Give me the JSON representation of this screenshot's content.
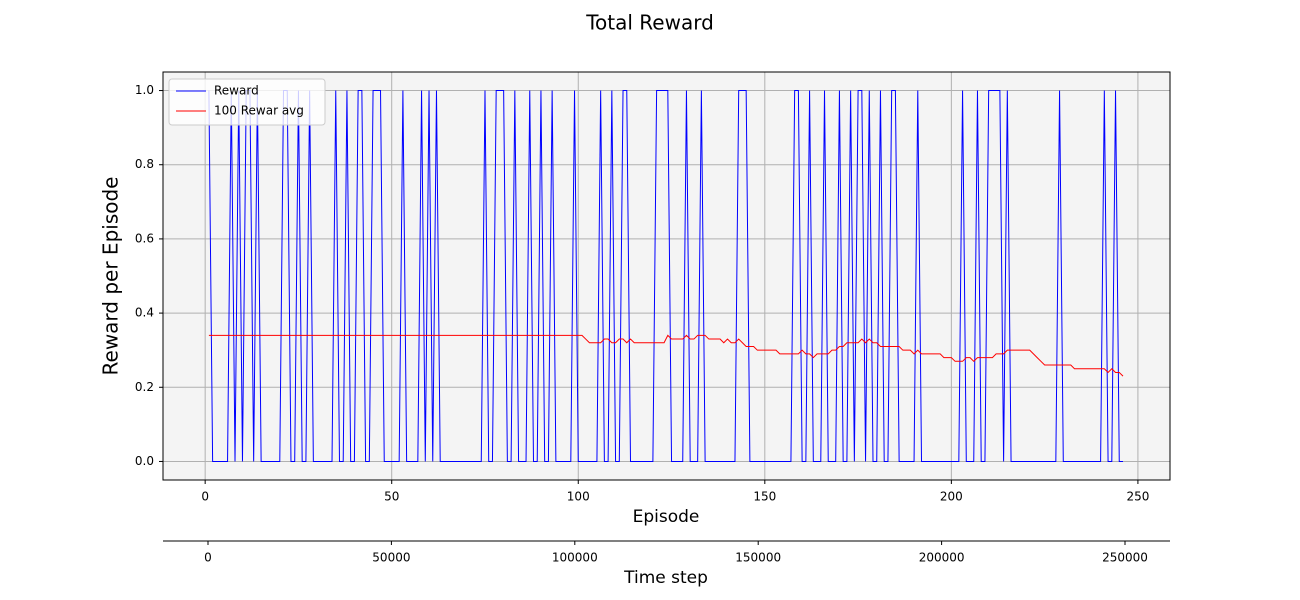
{
  "chart_data": {
    "type": "line",
    "title": "Total Reward",
    "xlabel": "Episode",
    "ylabel": "Reward per Episode",
    "x2label": "Time step",
    "legend": "upper left",
    "grid": true,
    "xlim": [
      -11.3,
      258.6
    ],
    "ylim": [
      -0.05,
      1.05
    ],
    "x2lim": [
      -12270,
      262270
    ],
    "xticks": [
      0,
      50,
      100,
      150,
      200,
      250
    ],
    "yticks": [
      {
        "value": 0,
        "label": "0.0"
      },
      0.2,
      0.4,
      0.6,
      0.8,
      {
        "value": 1,
        "label": "1.0"
      }
    ],
    "x2ticks": [
      0,
      50000,
      100000,
      150000,
      200000,
      250000
    ],
    "x": [
      1,
      2,
      3,
      4,
      5,
      6,
      7,
      8,
      9,
      10,
      11,
      12,
      13,
      14,
      15,
      16,
      17,
      18,
      19,
      20,
      21,
      22,
      23,
      24,
      25,
      26,
      27,
      28,
      29,
      30,
      31,
      32,
      33,
      34,
      35,
      36,
      37,
      38,
      39,
      40,
      41,
      42,
      43,
      44,
      45,
      46,
      47,
      48,
      49,
      50,
      51,
      52,
      53,
      54,
      55,
      56,
      57,
      58,
      59,
      60,
      61,
      62,
      63,
      64,
      65,
      66,
      67,
      68,
      69,
      70,
      71,
      72,
      73,
      74,
      75,
      76,
      77,
      78,
      79,
      80,
      81,
      82,
      83,
      84,
      85,
      86,
      87,
      88,
      89,
      90,
      91,
      92,
      93,
      94,
      95,
      96,
      97,
      98,
      99,
      100,
      101,
      102,
      103,
      104,
      105,
      106,
      107,
      108,
      109,
      110,
      111,
      112,
      113,
      114,
      115,
      116,
      117,
      118,
      119,
      120,
      121,
      122,
      123,
      124,
      125,
      126,
      127,
      128,
      129,
      130,
      131,
      132,
      133,
      134,
      135,
      136,
      137,
      138,
      139,
      140,
      141,
      142,
      143,
      144,
      145,
      146,
      147,
      148,
      149,
      150,
      151,
      152,
      153,
      154,
      155,
      156,
      157,
      158,
      159,
      160,
      161,
      162,
      163,
      164,
      165,
      166,
      167,
      168,
      169,
      170,
      171,
      172,
      173,
      174,
      175,
      176,
      177,
      178,
      179,
      180,
      181,
      182,
      183,
      184,
      185,
      186,
      187,
      188,
      189,
      190,
      191,
      192,
      193,
      194,
      195,
      196,
      197,
      198,
      199,
      200,
      201,
      202,
      203,
      204,
      205,
      206,
      207,
      208,
      209,
      210,
      211,
      212,
      213,
      214,
      215,
      216,
      217,
      218,
      219,
      220,
      221,
      222,
      223,
      224,
      225,
      226,
      227,
      228,
      229,
      230,
      231,
      232,
      233,
      234,
      235,
      236,
      237,
      238,
      239,
      240,
      241,
      242,
      243,
      244,
      245,
      246
    ],
    "series": [
      {
        "name": "Reward",
        "color": "#0000ff",
        "values": [
          1,
          0,
          0,
          0,
          0,
          0,
          1,
          0,
          1,
          0,
          1,
          1,
          0,
          1,
          0,
          0,
          0,
          0,
          0,
          0,
          1,
          1,
          0,
          0,
          1,
          0,
          0,
          1,
          0,
          0,
          0,
          0,
          0,
          0,
          1,
          0,
          0,
          1,
          0,
          0,
          1,
          1,
          0,
          0,
          1,
          1,
          1,
          0,
          0,
          0,
          0,
          0,
          1,
          0,
          0,
          0,
          0,
          1,
          0,
          1,
          0,
          1,
          0,
          0,
          0,
          0,
          0,
          0,
          0,
          0,
          0,
          0,
          0,
          0,
          1,
          0,
          0,
          1,
          1,
          1,
          0,
          0,
          1,
          0,
          0,
          0,
          1,
          0,
          0,
          1,
          0,
          0,
          1,
          0,
          0,
          0,
          0,
          0,
          1,
          0,
          0,
          0,
          0,
          0,
          0,
          1,
          0,
          0,
          1,
          0,
          0,
          1,
          1,
          0,
          0,
          0,
          0,
          0,
          0,
          0,
          1,
          1,
          1,
          1,
          0,
          0,
          0,
          0,
          1,
          0,
          0,
          0,
          1,
          0,
          0,
          0,
          0,
          0,
          0,
          0,
          0,
          0,
          1,
          1,
          1,
          0,
          0,
          0,
          0,
          0,
          0,
          0,
          0,
          0,
          0,
          0,
          0,
          1,
          1,
          0,
          0,
          1,
          0,
          0,
          0,
          1,
          0,
          0,
          0,
          1,
          0,
          0,
          1,
          0,
          1,
          1,
          0,
          1,
          0,
          0,
          1,
          0,
          0,
          1,
          1,
          0,
          0,
          0,
          0,
          0,
          1,
          0,
          0,
          0,
          0,
          0,
          0,
          0,
          0,
          0,
          0,
          0,
          1,
          0,
          0,
          0,
          1,
          0,
          0,
          1,
          1,
          1,
          1,
          0,
          1,
          0,
          0,
          0,
          0,
          0,
          0,
          0,
          0,
          0,
          0,
          0,
          0,
          0,
          1,
          0,
          0,
          0,
          0,
          0,
          0,
          0,
          0,
          0,
          0,
          0,
          1,
          0,
          0,
          1,
          0,
          0
        ]
      },
      {
        "name": "100 Rewar avg",
        "color": "#ff0000",
        "values": [
          0.34,
          0.34,
          0.34,
          0.34,
          0.34,
          0.34,
          0.34,
          0.34,
          0.34,
          0.34,
          0.34,
          0.34,
          0.34,
          0.34,
          0.34,
          0.34,
          0.34,
          0.34,
          0.34,
          0.34,
          0.34,
          0.34,
          0.34,
          0.34,
          0.34,
          0.34,
          0.34,
          0.34,
          0.34,
          0.34,
          0.34,
          0.34,
          0.34,
          0.34,
          0.34,
          0.34,
          0.34,
          0.34,
          0.34,
          0.34,
          0.34,
          0.34,
          0.34,
          0.34,
          0.34,
          0.34,
          0.34,
          0.34,
          0.34,
          0.34,
          0.34,
          0.34,
          0.34,
          0.34,
          0.34,
          0.34,
          0.34,
          0.34,
          0.34,
          0.34,
          0.34,
          0.34,
          0.34,
          0.34,
          0.34,
          0.34,
          0.34,
          0.34,
          0.34,
          0.34,
          0.34,
          0.34,
          0.34,
          0.34,
          0.34,
          0.34,
          0.34,
          0.34,
          0.34,
          0.34,
          0.34,
          0.34,
          0.34,
          0.34,
          0.34,
          0.34,
          0.34,
          0.34,
          0.34,
          0.34,
          0.34,
          0.34,
          0.34,
          0.34,
          0.34,
          0.34,
          0.34,
          0.34,
          0.34,
          0.34,
          0.34,
          0.33,
          0.32,
          0.32,
          0.32,
          0.32,
          0.33,
          0.33,
          0.32,
          0.32,
          0.33,
          0.33,
          0.32,
          0.33,
          0.32,
          0.32,
          0.32,
          0.32,
          0.32,
          0.32,
          0.32,
          0.32,
          0.32,
          0.34,
          0.33,
          0.33,
          0.33,
          0.33,
          0.34,
          0.33,
          0.33,
          0.34,
          0.34,
          0.34,
          0.33,
          0.33,
          0.33,
          0.33,
          0.32,
          0.33,
          0.32,
          0.32,
          0.33,
          0.32,
          0.31,
          0.31,
          0.31,
          0.3,
          0.3,
          0.3,
          0.3,
          0.3,
          0.3,
          0.29,
          0.29,
          0.29,
          0.29,
          0.29,
          0.29,
          0.3,
          0.29,
          0.29,
          0.28,
          0.29,
          0.29,
          0.29,
          0.29,
          0.3,
          0.3,
          0.31,
          0.31,
          0.32,
          0.32,
          0.32,
          0.32,
          0.33,
          0.32,
          0.33,
          0.32,
          0.32,
          0.31,
          0.31,
          0.31,
          0.31,
          0.31,
          0.31,
          0.3,
          0.3,
          0.3,
          0.29,
          0.3,
          0.29,
          0.29,
          0.29,
          0.29,
          0.29,
          0.29,
          0.28,
          0.28,
          0.28,
          0.27,
          0.27,
          0.27,
          0.28,
          0.28,
          0.27,
          0.28,
          0.28,
          0.28,
          0.28,
          0.28,
          0.29,
          0.29,
          0.29,
          0.3,
          0.3,
          0.3,
          0.3,
          0.3,
          0.3,
          0.3,
          0.29,
          0.28,
          0.27,
          0.26,
          0.26,
          0.26,
          0.26,
          0.26,
          0.26,
          0.26,
          0.26,
          0.25,
          0.25,
          0.25,
          0.25,
          0.25,
          0.25,
          0.25,
          0.25,
          0.25,
          0.24,
          0.25,
          0.24,
          0.24,
          0.23
        ]
      }
    ]
  }
}
